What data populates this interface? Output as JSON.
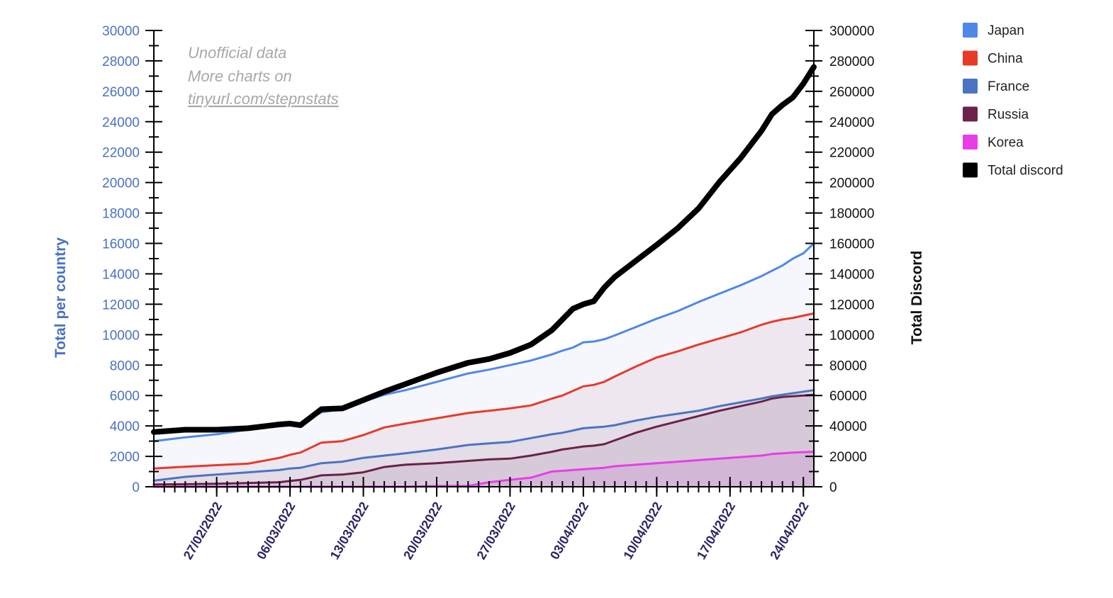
{
  "chart_data": {
    "type": "area",
    "title": "",
    "annotations": [
      "Unofficial data",
      "More charts on",
      "tinyurl.com/stepnstats"
    ],
    "ylabel_left": "Total per country",
    "ylabel_right": "Total Discord",
    "ylim_left": [
      0,
      30000
    ],
    "ylim_right": [
      0,
      300000
    ],
    "yticks_left": [
      "0",
      "2000",
      "4000",
      "6000",
      "8000",
      "10000",
      "12000",
      "14000",
      "16000",
      "18000",
      "20000",
      "22000",
      "24000",
      "26000",
      "28000",
      "30000"
    ],
    "yticks_right": [
      "0",
      "20000",
      "40000",
      "60000",
      "80000",
      "100000",
      "120000",
      "140000",
      "160000",
      "180000",
      "200000",
      "220000",
      "240000",
      "260000",
      "280000",
      "300000"
    ],
    "x_start": "21/02/2022",
    "x_end": "25/04/2022",
    "x_days": 63,
    "xticks": [
      {
        "day": 6,
        "label": "27/02/2022"
      },
      {
        "day": 13,
        "label": "06/03/2022"
      },
      {
        "day": 20,
        "label": "13/03/2022"
      },
      {
        "day": 27,
        "label": "20/03/2022"
      },
      {
        "day": 34,
        "label": "27/03/2022"
      },
      {
        "day": 41,
        "label": "03/04/2022"
      },
      {
        "day": 48,
        "label": "10/04/2022"
      },
      {
        "day": 55,
        "label": "17/04/2022"
      },
      {
        "day": 62,
        "label": "24/04/2022"
      }
    ],
    "x": [
      0,
      3,
      6,
      9,
      12,
      13,
      14,
      16,
      18,
      20,
      22,
      24,
      27,
      30,
      32,
      34,
      36,
      38,
      39,
      40,
      41,
      42,
      43,
      44,
      46,
      48,
      50,
      52,
      54,
      56,
      58,
      59,
      60,
      61,
      62,
      63
    ],
    "series": [
      {
        "name": "Japan",
        "axis": "left",
        "color": "#5088e8",
        "fill": "#ecf1fb",
        "values": [
          3000,
          3250,
          3450,
          3750,
          4000,
          4100,
          4100,
          4900,
          5100,
          5600,
          6050,
          6350,
          6900,
          7450,
          7700,
          8000,
          8300,
          8700,
          8950,
          9150,
          9500,
          9550,
          9700,
          9950,
          10500,
          11050,
          11550,
          12150,
          12700,
          13250,
          13850,
          14200,
          14550,
          15000,
          15350,
          16000
        ]
      },
      {
        "name": "China",
        "axis": "left",
        "color": "#e83a2a",
        "fill": "#eadbe3",
        "values": [
          1200,
          1320,
          1420,
          1520,
          1900,
          2100,
          2250,
          2900,
          3000,
          3400,
          3900,
          4150,
          4500,
          4850,
          5000,
          5150,
          5350,
          5800,
          6000,
          6300,
          6600,
          6700,
          6900,
          7250,
          7900,
          8500,
          8900,
          9350,
          9750,
          10150,
          10650,
          10850,
          11000,
          11100,
          11250,
          11400
        ]
      },
      {
        "name": "France",
        "axis": "left",
        "color": "#4b74c2",
        "fill": "#dbd3df",
        "values": [
          400,
          650,
          800,
          950,
          1100,
          1200,
          1250,
          1550,
          1650,
          1900,
          2050,
          2200,
          2450,
          2750,
          2850,
          2950,
          3200,
          3450,
          3550,
          3700,
          3850,
          3900,
          3950,
          4050,
          4350,
          4600,
          4800,
          5000,
          5300,
          5550,
          5800,
          5950,
          6050,
          6150,
          6250,
          6350
        ]
      },
      {
        "name": "Russia",
        "axis": "left",
        "color": "#6b2149",
        "fill": "#cbbccd",
        "values": [
          150,
          170,
          200,
          240,
          300,
          380,
          450,
          750,
          800,
          950,
          1300,
          1450,
          1550,
          1700,
          1800,
          1850,
          2050,
          2300,
          2450,
          2550,
          2650,
          2700,
          2800,
          3050,
          3550,
          3950,
          4300,
          4650,
          5000,
          5300,
          5600,
          5800,
          5900,
          5950,
          6000,
          6050
        ]
      },
      {
        "name": "Korea",
        "axis": "left",
        "color": "#e83ee8",
        "fill": "#d0a8d3",
        "values": [
          0,
          0,
          0,
          0,
          0,
          0,
          0,
          0,
          0,
          0,
          0,
          0,
          50,
          50,
          300,
          450,
          600,
          1000,
          1050,
          1100,
          1150,
          1200,
          1250,
          1350,
          1450,
          1550,
          1650,
          1750,
          1850,
          1950,
          2050,
          2150,
          2200,
          2250,
          2280,
          2300
        ]
      },
      {
        "name": "Total discord",
        "axis": "right",
        "color": "#000000",
        "fill": "none",
        "values": [
          36000,
          37500,
          37500,
          38500,
          41000,
          41500,
          40500,
          51000,
          51500,
          57000,
          62500,
          67500,
          75000,
          81500,
          84000,
          88000,
          93500,
          103000,
          110000,
          117000,
          120000,
          122000,
          131000,
          138000,
          148500,
          159000,
          170000,
          183000,
          200500,
          216000,
          234000,
          245000,
          251000,
          256000,
          265000,
          276000
        ]
      }
    ]
  }
}
